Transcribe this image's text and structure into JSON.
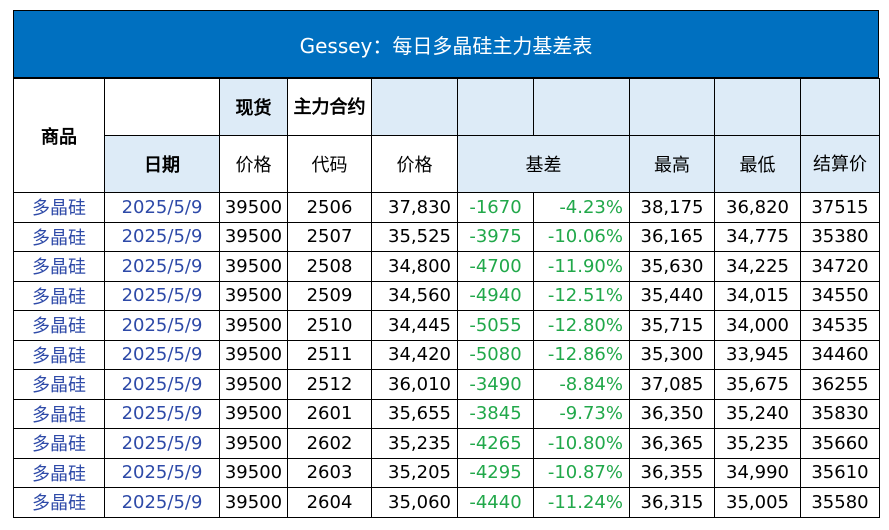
{
  "title": "Gessey：每日多晶硅主力基差表",
  "header": {
    "product": "商品",
    "spot": "现货",
    "contract": "主力合约",
    "date": "日期",
    "spot_price": "价格",
    "contract_code": "代码",
    "contract_price": "价格",
    "basis": "基差",
    "high": "最高",
    "low": "最低",
    "settle": "结算价"
  },
  "rows": [
    {
      "product": "多晶硅",
      "date": "2025/5/9",
      "spot": "39500",
      "code": "2506",
      "price": "37,830",
      "basis": "-1670",
      "basis_pct": "-4.23%",
      "high": "38,175",
      "low": "36,820",
      "settle": "37515"
    },
    {
      "product": "多晶硅",
      "date": "2025/5/9",
      "spot": "39500",
      "code": "2507",
      "price": "35,525",
      "basis": "-3975",
      "basis_pct": "-10.06%",
      "high": "36,165",
      "low": "34,775",
      "settle": "35380"
    },
    {
      "product": "多晶硅",
      "date": "2025/5/9",
      "spot": "39500",
      "code": "2508",
      "price": "34,800",
      "basis": "-4700",
      "basis_pct": "-11.90%",
      "high": "35,630",
      "low": "34,225",
      "settle": "34720"
    },
    {
      "product": "多晶硅",
      "date": "2025/5/9",
      "spot": "39500",
      "code": "2509",
      "price": "34,560",
      "basis": "-4940",
      "basis_pct": "-12.51%",
      "high": "35,440",
      "low": "34,015",
      "settle": "34550"
    },
    {
      "product": "多晶硅",
      "date": "2025/5/9",
      "spot": "39500",
      "code": "2510",
      "price": "34,445",
      "basis": "-5055",
      "basis_pct": "-12.80%",
      "high": "35,715",
      "low": "34,000",
      "settle": "34535"
    },
    {
      "product": "多晶硅",
      "date": "2025/5/9",
      "spot": "39500",
      "code": "2511",
      "price": "34,420",
      "basis": "-5080",
      "basis_pct": "-12.86%",
      "high": "35,300",
      "low": "33,945",
      "settle": "34460"
    },
    {
      "product": "多晶硅",
      "date": "2025/5/9",
      "spot": "39500",
      "code": "2512",
      "price": "36,010",
      "basis": "-3490",
      "basis_pct": "-8.84%",
      "high": "37,085",
      "low": "35,675",
      "settle": "36255"
    },
    {
      "product": "多晶硅",
      "date": "2025/5/9",
      "spot": "39500",
      "code": "2601",
      "price": "35,655",
      "basis": "-3845",
      "basis_pct": "-9.73%",
      "high": "36,350",
      "low": "35,240",
      "settle": "35830"
    },
    {
      "product": "多晶硅",
      "date": "2025/5/9",
      "spot": "39500",
      "code": "2602",
      "price": "35,235",
      "basis": "-4265",
      "basis_pct": "-10.80%",
      "high": "36,365",
      "low": "35,235",
      "settle": "35660"
    },
    {
      "product": "多晶硅",
      "date": "2025/5/9",
      "spot": "39500",
      "code": "2603",
      "price": "35,205",
      "basis": "-4295",
      "basis_pct": "-10.87%",
      "high": "36,355",
      "low": "34,990",
      "settle": "35610"
    },
    {
      "product": "多晶硅",
      "date": "2025/5/9",
      "spot": "39500",
      "code": "2604",
      "price": "35,060",
      "basis": "-4440",
      "basis_pct": "-11.24%",
      "high": "36,315",
      "low": "35,005",
      "settle": "35580"
    }
  ],
  "colors": {
    "title_bg": "#0070c0",
    "header_bg": "#ddebf7",
    "basis_text": "#21a84a",
    "link_text": "#2e4aa8"
  }
}
